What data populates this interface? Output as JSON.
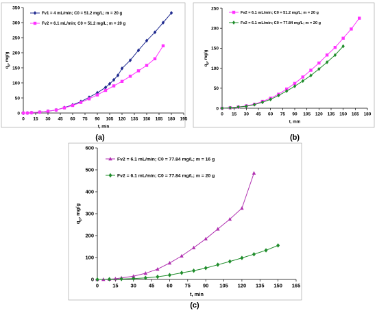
{
  "figure_labels": [
    "(a)",
    "(b)",
    "(c)"
  ],
  "chart_data": [
    {
      "type": "line",
      "label": "(a)",
      "xlabel": "t, min",
      "ylabel": "q",
      "ylabel_sub": "p",
      "ylabel_unit": ", mg/g",
      "xlim": [
        0,
        195
      ],
      "ylim": [
        0,
        350
      ],
      "xticks": [
        0,
        15,
        30,
        45,
        60,
        75,
        90,
        105,
        120,
        135,
        150,
        165,
        180,
        195
      ],
      "yticks": [
        0,
        50,
        100,
        150,
        200,
        250,
        300,
        350
      ],
      "legend": "upper-left",
      "series": [
        {
          "name": "Fv1 = 4 mL/min; C0 = 51.2 mg/L; m = 20 g",
          "color": "#1f2a8f",
          "marker": "diamond",
          "x": [
            0,
            5,
            10,
            20,
            30,
            40,
            50,
            60,
            70,
            80,
            90,
            100,
            105,
            110,
            115,
            120,
            130,
            140,
            150,
            160,
            170,
            180
          ],
          "y": [
            0,
            0,
            1,
            3,
            6,
            10,
            18,
            27,
            38,
            52,
            67,
            85,
            97,
            110,
            125,
            148,
            175,
            208,
            240,
            268,
            300,
            332
          ]
        },
        {
          "name": "Fv2 = 6.1 mL/min; C0 = 51.2 mg/L; m = 20 g",
          "color": "#ff33ff",
          "marker": "square",
          "x": [
            0,
            5,
            10,
            20,
            30,
            40,
            50,
            60,
            70,
            80,
            90,
            100,
            110,
            120,
            130,
            140,
            150,
            160,
            170
          ],
          "y": [
            0,
            0,
            1,
            3,
            6,
            10,
            17,
            25,
            35,
            47,
            60,
            75,
            90,
            105,
            122,
            140,
            158,
            180,
            223
          ]
        }
      ]
    },
    {
      "type": "line",
      "label": "(b)",
      "xlabel": "t, min",
      "ylabel": "q",
      "ylabel_sub": "p",
      "ylabel_unit": ", mg/g",
      "xlim": [
        0,
        180
      ],
      "ylim": [
        0,
        250
      ],
      "xticks": [
        0,
        15,
        30,
        45,
        60,
        75,
        90,
        105,
        120,
        135,
        150,
        165,
        180
      ],
      "yticks": [
        0,
        50,
        100,
        150,
        200,
        250
      ],
      "legend": "upper-left",
      "series": [
        {
          "name": "Fv2 = 6.1 mL/min; C0 = 51.2 mg/L; m = 20 g",
          "color": "#ff33ff",
          "marker": "square",
          "x": [
            0,
            10,
            20,
            30,
            40,
            50,
            60,
            70,
            80,
            90,
            100,
            110,
            120,
            130,
            140,
            150,
            160,
            170
          ],
          "y": [
            0,
            1,
            3,
            6,
            10,
            17,
            25,
            35,
            48,
            62,
            78,
            95,
            113,
            133,
            152,
            175,
            198,
            225
          ]
        },
        {
          "name": "Fv2 = 6.1 mL/min; C0 = 77.84 mg/L; m = 20 g",
          "color": "#1e8c2a",
          "marker": "diamond",
          "x": [
            0,
            10,
            20,
            30,
            40,
            50,
            60,
            70,
            80,
            90,
            100,
            110,
            120,
            130,
            140,
            150
          ],
          "y": [
            0,
            1,
            3,
            5,
            9,
            15,
            22,
            32,
            43,
            55,
            68,
            82,
            98,
            115,
            133,
            155
          ]
        }
      ]
    },
    {
      "type": "line",
      "label": "(c)",
      "xlabel": "t, min",
      "ylabel": "q",
      "ylabel_sub": "p",
      "ylabel_unit": ", mg/g",
      "xlim": [
        0,
        165
      ],
      "ylim": [
        0,
        600
      ],
      "xticks": [
        0,
        15,
        30,
        45,
        60,
        75,
        90,
        105,
        120,
        135,
        150,
        165
      ],
      "yticks": [
        0,
        100,
        200,
        300,
        400,
        500,
        600
      ],
      "legend": "upper-left",
      "series": [
        {
          "name": "Fv2 = 6.1 mL/min; C0 = 77.84 mg/L; m = 16 g",
          "color": "#b030b0",
          "marker": "triangle",
          "x": [
            0,
            5,
            10,
            15,
            20,
            30,
            40,
            50,
            60,
            70,
            80,
            90,
            100,
            110,
            120,
            130
          ],
          "y": [
            0,
            0,
            1,
            3,
            7,
            15,
            28,
            47,
            75,
            107,
            145,
            185,
            230,
            275,
            325,
            485
          ]
        },
        {
          "name": "Fv2 = 6.1 mL/min; C0 = 77.84 mg/L; m = 20 g",
          "color": "#1e8c2a",
          "marker": "diamond",
          "x": [
            0,
            10,
            20,
            30,
            40,
            50,
            60,
            70,
            80,
            90,
            100,
            110,
            120,
            130,
            140,
            150
          ],
          "y": [
            0,
            1,
            2,
            4,
            7,
            12,
            20,
            30,
            40,
            52,
            67,
            82,
            98,
            115,
            133,
            155
          ]
        }
      ]
    }
  ]
}
